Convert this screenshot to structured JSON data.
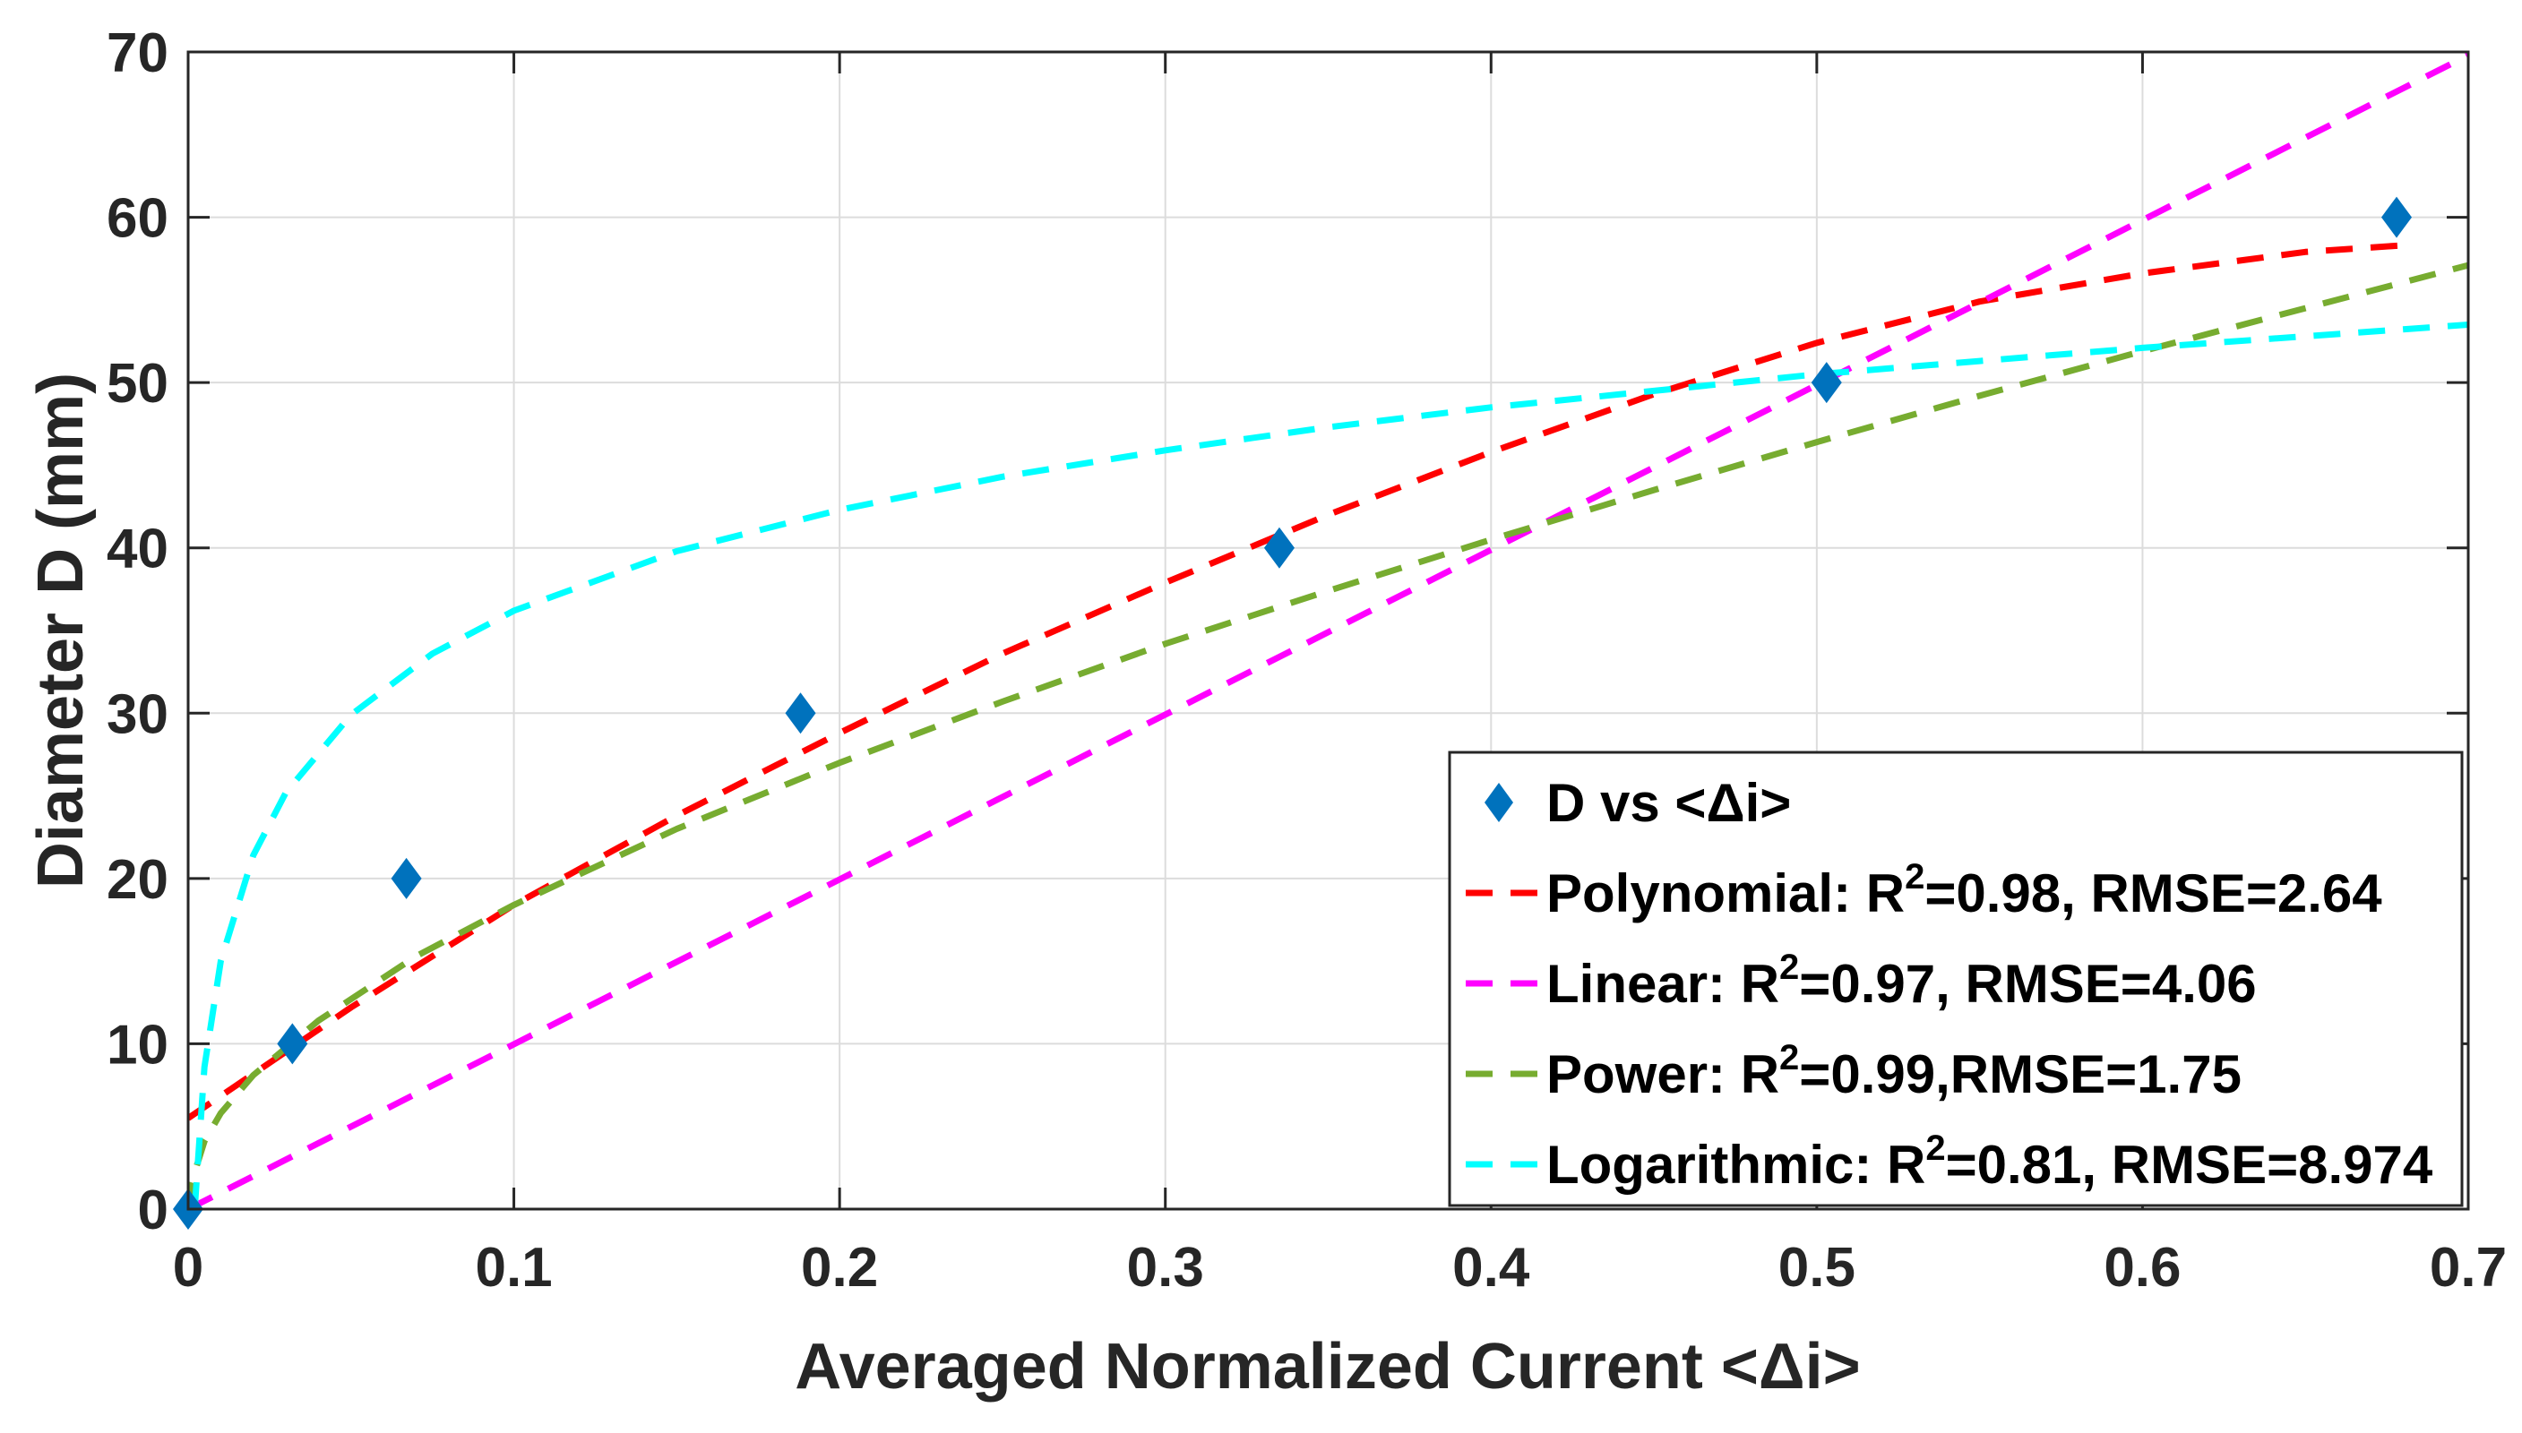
{
  "chart_data": {
    "type": "line",
    "xlabel": "Averaged Normalized Current <Δi>",
    "ylabel": "Diameter D (mm)",
    "xlim": [
      0,
      0.7
    ],
    "ylim": [
      0,
      70
    ],
    "xticks": [
      0,
      0.1,
      0.2,
      0.3,
      0.4,
      0.5,
      0.6,
      0.7
    ],
    "xtick_labels": [
      "0",
      "0.1",
      "0.2",
      "0.3",
      "0.4",
      "0.5",
      "0.6",
      "0.7"
    ],
    "yticks": [
      0,
      10,
      20,
      30,
      40,
      50,
      60,
      70
    ],
    "ytick_labels": [
      "0",
      "10",
      "20",
      "30",
      "40",
      "50",
      "60",
      "70"
    ],
    "grid": true,
    "legend_position": "bottom-right",
    "series": [
      {
        "name": "D vs <Δi>",
        "kind": "scatter",
        "marker": "diamond",
        "color": "#0072BD",
        "x": [
          0,
          0.032,
          0.067,
          0.188,
          0.335,
          0.503,
          0.678
        ],
        "y": [
          0,
          10,
          20,
          30,
          40,
          50,
          60
        ]
      },
      {
        "name": "Polynomial",
        "kind": "fit",
        "color": "#FF0000",
        "x": [
          0,
          0.05,
          0.1,
          0.15,
          0.2,
          0.25,
          0.3,
          0.35,
          0.4,
          0.45,
          0.5,
          0.55,
          0.6,
          0.65,
          0.68
        ],
        "y": [
          5.5,
          12.2,
          18.4,
          23.8,
          28.8,
          33.6,
          37.9,
          42.0,
          45.8,
          49.3,
          52.4,
          54.9,
          56.6,
          57.9,
          58.3
        ]
      },
      {
        "name": "Linear",
        "kind": "fit",
        "color": "#FF00FF",
        "x": [
          0,
          0.7
        ],
        "y": [
          0,
          69.8
        ]
      },
      {
        "name": "Power",
        "kind": "fit",
        "color": "#77AC30",
        "x": [
          0,
          0.001,
          0.005,
          0.01,
          0.02,
          0.04,
          0.07,
          0.1,
          0.15,
          0.2,
          0.25,
          0.3,
          0.35,
          0.4,
          0.45,
          0.5,
          0.55,
          0.6,
          0.65,
          0.7
        ],
        "y": [
          0,
          1.6,
          4.1,
          5.8,
          8.1,
          11.4,
          15.3,
          18.4,
          23.0,
          27.0,
          30.7,
          34.2,
          37.4,
          40.5,
          43.5,
          46.4,
          49.2,
          51.9,
          54.5,
          57.1
        ]
      },
      {
        "name": "Logarithmic",
        "kind": "fit",
        "color": "#00FFFF",
        "x": [
          0.002,
          0.005,
          0.01,
          0.02,
          0.03,
          0.05,
          0.075,
          0.1,
          0.15,
          0.2,
          0.25,
          0.3,
          0.35,
          0.4,
          0.45,
          0.5,
          0.55,
          0.6,
          0.65,
          0.7
        ],
        "y": [
          0,
          8.6,
          15.0,
          21.4,
          25.2,
          29.9,
          33.6,
          36.2,
          39.8,
          42.3,
          44.3,
          45.9,
          47.3,
          48.5,
          49.5,
          50.5,
          51.3,
          52.1,
          52.8,
          53.5
        ]
      }
    ],
    "legend": [
      {
        "symbol": "diamond",
        "color": "#0072BD",
        "text": "D vs <Δi>",
        "pre": "",
        "sup": "",
        "post": ""
      },
      {
        "symbol": "dash",
        "color": "#FF0000",
        "pre": "Polynomial: R",
        "sup": "2",
        "post": "=0.98, RMSE=2.64"
      },
      {
        "symbol": "dash",
        "color": "#FF00FF",
        "pre": "Linear: R",
        "sup": "2",
        "post": "=0.97, RMSE=4.06"
      },
      {
        "symbol": "dash",
        "color": "#77AC30",
        "pre": "Power: R",
        "sup": "2",
        "post": "=0.99,RMSE=1.75"
      },
      {
        "symbol": "dash",
        "color": "#00FFFF",
        "pre": "Logarithmic: R",
        "sup": "2",
        "post": "=0.81, RMSE=8.974"
      }
    ]
  }
}
